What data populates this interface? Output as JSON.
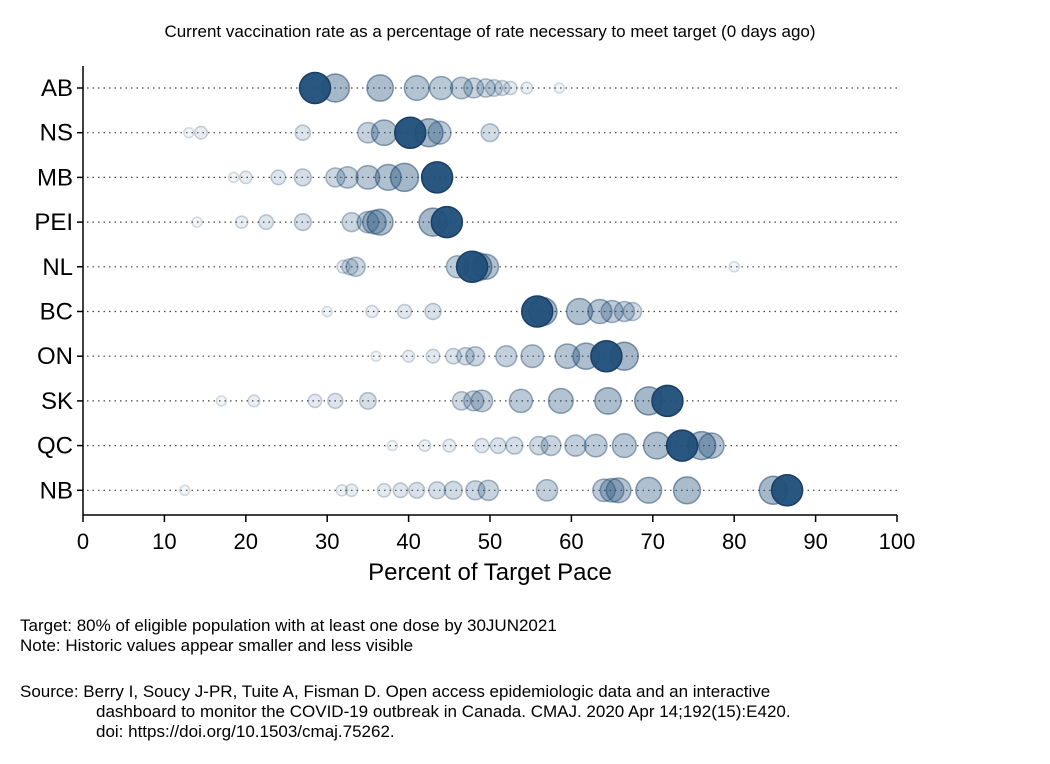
{
  "chart_data": {
    "type": "scatter",
    "title": "Current vaccination rate as a percentage of rate necessary to meet target (0 days ago)",
    "xlabel": "Percent of Target Pace",
    "xlim": [
      0,
      100
    ],
    "xticks": [
      0,
      10,
      20,
      30,
      40,
      50,
      60,
      70,
      80,
      90,
      100
    ],
    "grid": "dotted horizontal lines per province",
    "legend": "none",
    "colors": {
      "marker": "#1f4e79",
      "marker_edge": "#1a3f66",
      "background": "#ffffff"
    },
    "categories": [
      "AB",
      "NS",
      "MB",
      "PEI",
      "NL",
      "BC",
      "ON",
      "SK",
      "QC",
      "NB"
    ],
    "series": [
      {
        "category": "AB",
        "current": 28.5,
        "history": [
          31,
          36.5,
          41,
          44,
          46.5,
          48,
          49.5,
          50.5,
          51.5,
          52.5,
          54.5,
          58.5
        ]
      },
      {
        "category": "NS",
        "current": 40.2,
        "history": [
          13,
          14.5,
          27,
          35,
          37,
          42.5,
          43.8,
          50
        ]
      },
      {
        "category": "MB",
        "current": 43.5,
        "history": [
          18.5,
          20,
          24,
          27,
          31,
          32.5,
          35,
          37.5,
          39.5
        ]
      },
      {
        "category": "PEI",
        "current": 44.7,
        "history": [
          14,
          19.5,
          22.5,
          27,
          33,
          35,
          35.8,
          36.5,
          43
        ]
      },
      {
        "category": "NL",
        "current": 47.8,
        "history": [
          32,
          32.8,
          33.5,
          46,
          48.5,
          49.5,
          80
        ]
      },
      {
        "category": "BC",
        "current": 55.8,
        "history": [
          30,
          35.5,
          39.5,
          43,
          56.5,
          61,
          63.5,
          65,
          66.5,
          67.5
        ]
      },
      {
        "category": "ON",
        "current": 64.3,
        "history": [
          36,
          40,
          43,
          45.5,
          47,
          48.2,
          52,
          55.2,
          59.5,
          61.8,
          66.5
        ]
      },
      {
        "category": "SK",
        "current": 71.8,
        "history": [
          17,
          21,
          28.5,
          31,
          35,
          46.5,
          48,
          49,
          53.8,
          58.7,
          64.5,
          69.5
        ]
      },
      {
        "category": "QC",
        "current": 73.6,
        "history": [
          38,
          42,
          45,
          49,
          51,
          53,
          56,
          57.5,
          60.5,
          63,
          66.5,
          70.5,
          76,
          77.2
        ]
      },
      {
        "category": "NB",
        "current": 86.5,
        "history": [
          12.5,
          31.8,
          33,
          37,
          39,
          41,
          43.5,
          45.5,
          48.2,
          49.8,
          57,
          64,
          65,
          65.8,
          69.5,
          74.2,
          84.8
        ]
      }
    ]
  },
  "notes": {
    "target": "Target: 80% of eligible population with at least one dose by 30JUN2021",
    "note": "Note: Historic values appear smaller and less visible"
  },
  "source": {
    "line1": "Source: Berry I, Soucy J-PR, Tuite A, Fisman D. Open access epidemiologic data and an interactive",
    "line2": "dashboard to monitor the COVID-19 outbreak in Canada. CMAJ. 2020 Apr 14;192(15):E420.",
    "line3": "doi: https://doi.org/10.1503/cmaj.75262."
  }
}
